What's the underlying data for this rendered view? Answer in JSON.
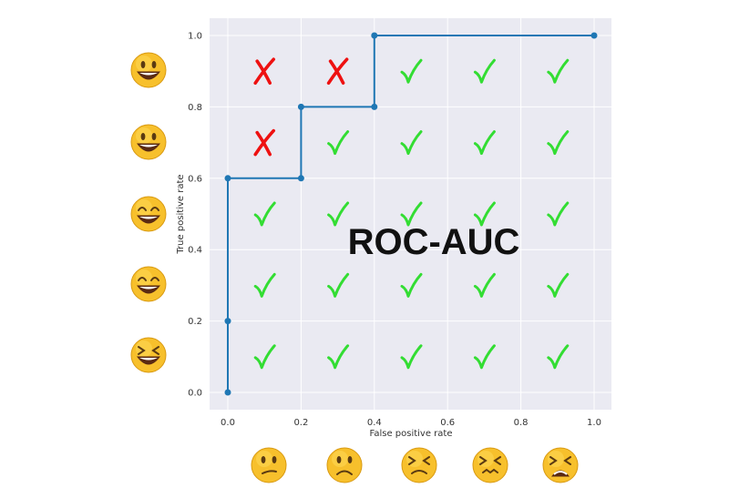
{
  "chart_data": {
    "type": "line",
    "title": "ROC-AUC",
    "xlabel": "False positive rate",
    "ylabel": "True positive rate",
    "xlim": [
      0,
      1
    ],
    "ylim": [
      0,
      1
    ],
    "grid": true,
    "x_ticks": [
      "0.0",
      "0.2",
      "0.4",
      "0.6",
      "0.8",
      "1.0"
    ],
    "y_ticks": [
      "0.0",
      "0.2",
      "0.4",
      "0.6",
      "0.8",
      "1.0"
    ],
    "series": [
      {
        "x": [
          0.0,
          0.0,
          0.0,
          0.2,
          0.2,
          0.4,
          0.4,
          1.0
        ],
        "y": [
          0.0,
          0.2,
          0.6,
          0.6,
          0.8,
          0.8,
          1.0,
          1.0
        ],
        "color": "#1f77b4"
      }
    ],
    "grid_marks": {
      "rows": [
        [
          "cross",
          "cross",
          "check",
          "check",
          "check"
        ],
        [
          "cross",
          "check",
          "check",
          "check",
          "check"
        ],
        [
          "check",
          "check",
          "check",
          "check",
          "check"
        ],
        [
          "check",
          "check",
          "check",
          "check",
          "check"
        ],
        [
          "check",
          "check",
          "check",
          "check",
          "check"
        ]
      ],
      "check_color": "#33dd33",
      "cross_color": "#ee1111"
    },
    "left_faces": [
      "grinning-face-icon",
      "smiley-face-icon",
      "big-grin-face-icon",
      "beaming-face-icon",
      "squinting-laugh-face-icon"
    ],
    "bottom_faces": [
      "confused-face-icon",
      "frowning-face-icon",
      "dizzy-face-icon",
      "confounded-face-icon",
      "tired-face-icon"
    ]
  }
}
